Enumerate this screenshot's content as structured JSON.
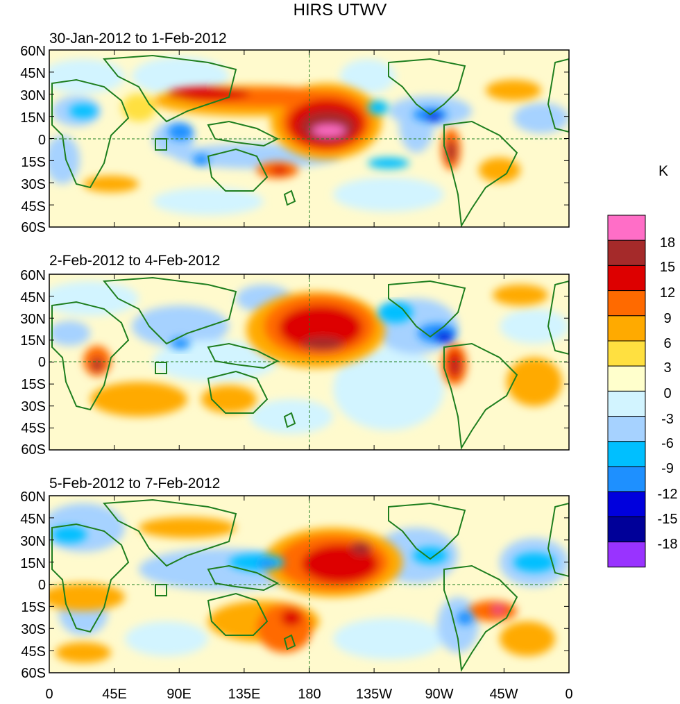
{
  "title": "HIRS UTWV",
  "units_label": "K",
  "panels": [
    {
      "label": "30-Jan-2012 to 1-Feb-2012"
    },
    {
      "label": "2-Feb-2012 to 4-Feb-2012"
    },
    {
      "label": "5-Feb-2012 to 7-Feb-2012"
    }
  ],
  "lat_ticks": [
    "60N",
    "45N",
    "30N",
    "15N",
    "0",
    "15S",
    "30S",
    "45S",
    "60S"
  ],
  "lon_ticks": [
    "0",
    "45E",
    "90E",
    "135E",
    "180",
    "135W",
    "90W",
    "45W",
    "0"
  ],
  "colorbar": {
    "labels": [
      "18",
      "15",
      "12",
      "9",
      "6",
      "3",
      "0",
      "-3",
      "-6",
      "-9",
      "-12",
      "-15",
      "-18"
    ],
    "colors": [
      "#ff6ec7",
      "#a52a2a",
      "#dd0000",
      "#ff6a00",
      "#ffaa00",
      "#ffe040",
      "#ffffcc",
      "#d2f4ff",
      "#a6d2ff",
      "#00bfff",
      "#1e90ff",
      "#0000dd",
      "#000099",
      "#9933ff"
    ]
  },
  "map_colors": {
    "land": "#1e7e1e",
    "background": "#fffacd"
  }
}
